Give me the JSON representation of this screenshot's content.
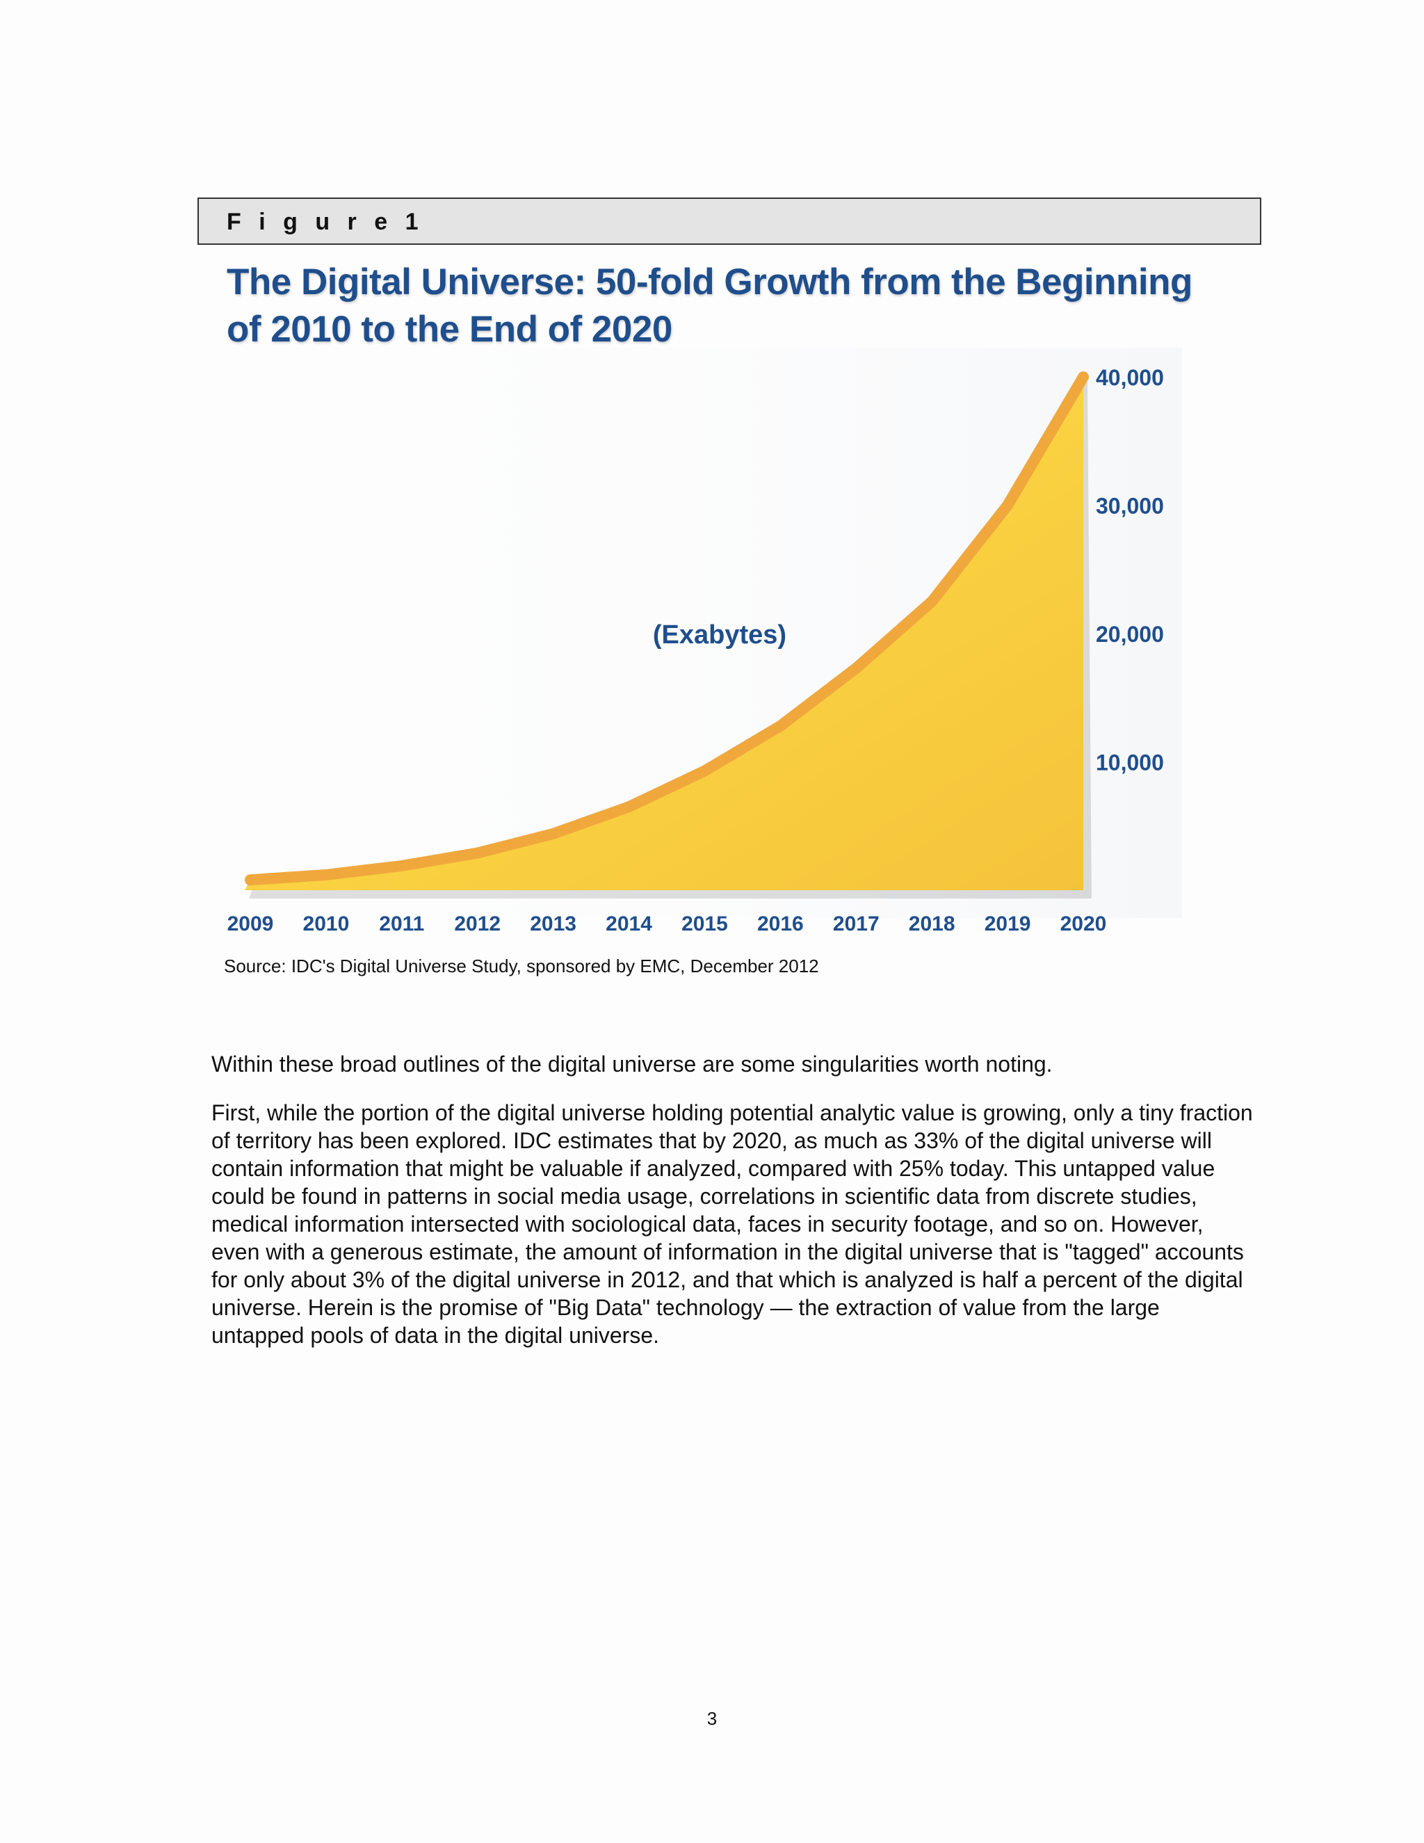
{
  "figure_label": "F i g u r e  1",
  "chart_data": {
    "type": "area",
    "title": "The Digital Universe: 50-fold Growth from the Beginning of 2010 to the End of 2020",
    "annotation": "(Exabytes)",
    "x": [
      "2009",
      "2010",
      "2011",
      "2012",
      "2013",
      "2014",
      "2015",
      "2016",
      "2017",
      "2018",
      "2019",
      "2020"
    ],
    "values": [
      800,
      1200,
      1900,
      2900,
      4400,
      6500,
      9300,
      12800,
      17300,
      22500,
      30000,
      40000
    ],
    "y_ticks": [
      10000,
      20000,
      30000,
      40000
    ],
    "y_tick_labels": [
      "10,000",
      "20,000",
      "30,000",
      "40,000"
    ],
    "ylim": [
      0,
      40000
    ],
    "y_axis_side": "right",
    "grid": false,
    "colors": {
      "fill_light": "#ffe24a",
      "fill_dark": "#f5c33a",
      "edge": "#f0a83c",
      "text": "#1f4e8c"
    }
  },
  "source_note": "Source: IDC's Digital Universe Study, sponsored by EMC, December 2012",
  "paragraphs": [
    "Within these broad outlines of the digital universe are some singularities worth noting.",
    "First, while the portion of the digital universe holding potential analytic value is growing, only a tiny fraction of territory has been explored. IDC estimates that by 2020, as much as 33% of the digital universe will contain information that might be valuable if analyzed, compared with 25% today. This untapped value could be found in patterns in social media usage, correlations in scientific data from discrete studies, medical information intersected with sociological data, faces in security footage, and so on. However, even with a generous estimate, the amount of information in the digital universe that is \"tagged\" accounts for only about 3% of the digital universe in 2012, and that which is analyzed is half a percent of the digital universe. Herein is the promise of \"Big Data\" technology — the extraction of value from the large untapped pools of data in the digital universe."
  ],
  "page_number": "3"
}
